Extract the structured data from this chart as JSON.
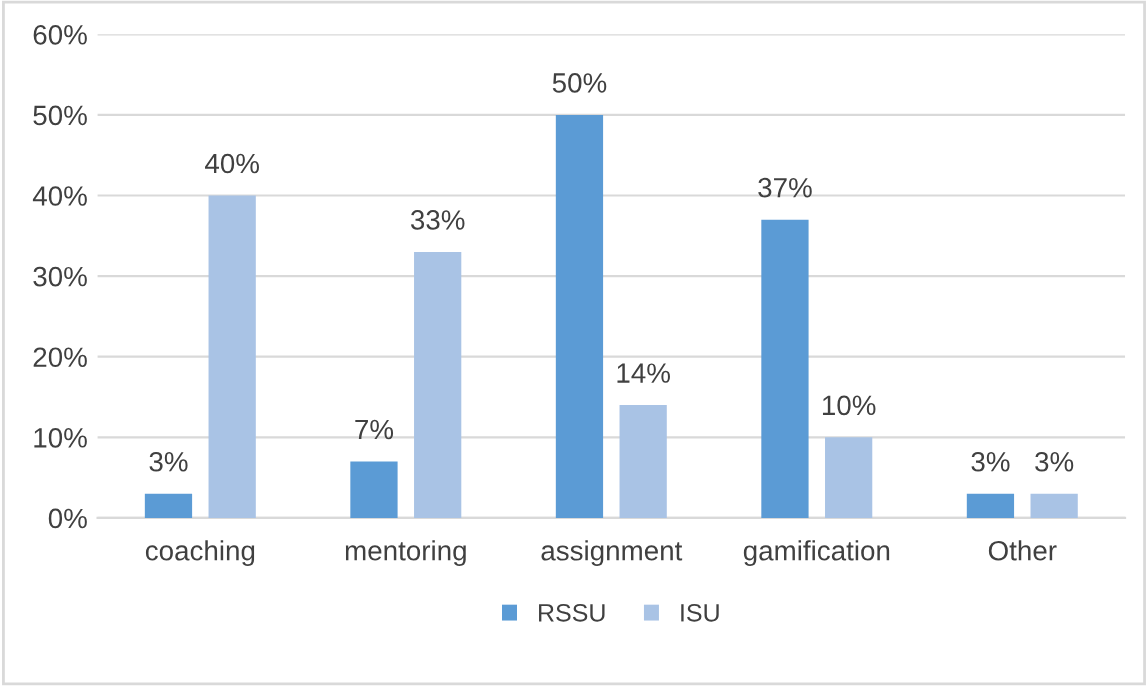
{
  "chart_data": {
    "type": "bar",
    "categories": [
      "coaching",
      "mentoring",
      "assignment",
      "gamification",
      "Other"
    ],
    "series": [
      {
        "name": "RSSU",
        "color": "#5b9bd5",
        "values": [
          3,
          7,
          50,
          37,
          3
        ],
        "value_labels": [
          "3%",
          "7%",
          "50%",
          "37%",
          "3%"
        ]
      },
      {
        "name": "ISU",
        "color": "#a9c3e5",
        "values": [
          40,
          33,
          14,
          10,
          3
        ],
        "value_labels": [
          "40%",
          "33%",
          "14%",
          "10%",
          "3%"
        ]
      }
    ],
    "ylim": [
      0,
      60
    ],
    "yticks": [
      {
        "value": 0,
        "label": "0%"
      },
      {
        "value": 10,
        "label": "10%"
      },
      {
        "value": 20,
        "label": "20%"
      },
      {
        "value": 30,
        "label": "30%"
      },
      {
        "value": 40,
        "label": "40%"
      },
      {
        "value": 50,
        "label": "50%"
      },
      {
        "value": 60,
        "label": "60%"
      }
    ],
    "grid": "y",
    "legend": "bottom"
  }
}
